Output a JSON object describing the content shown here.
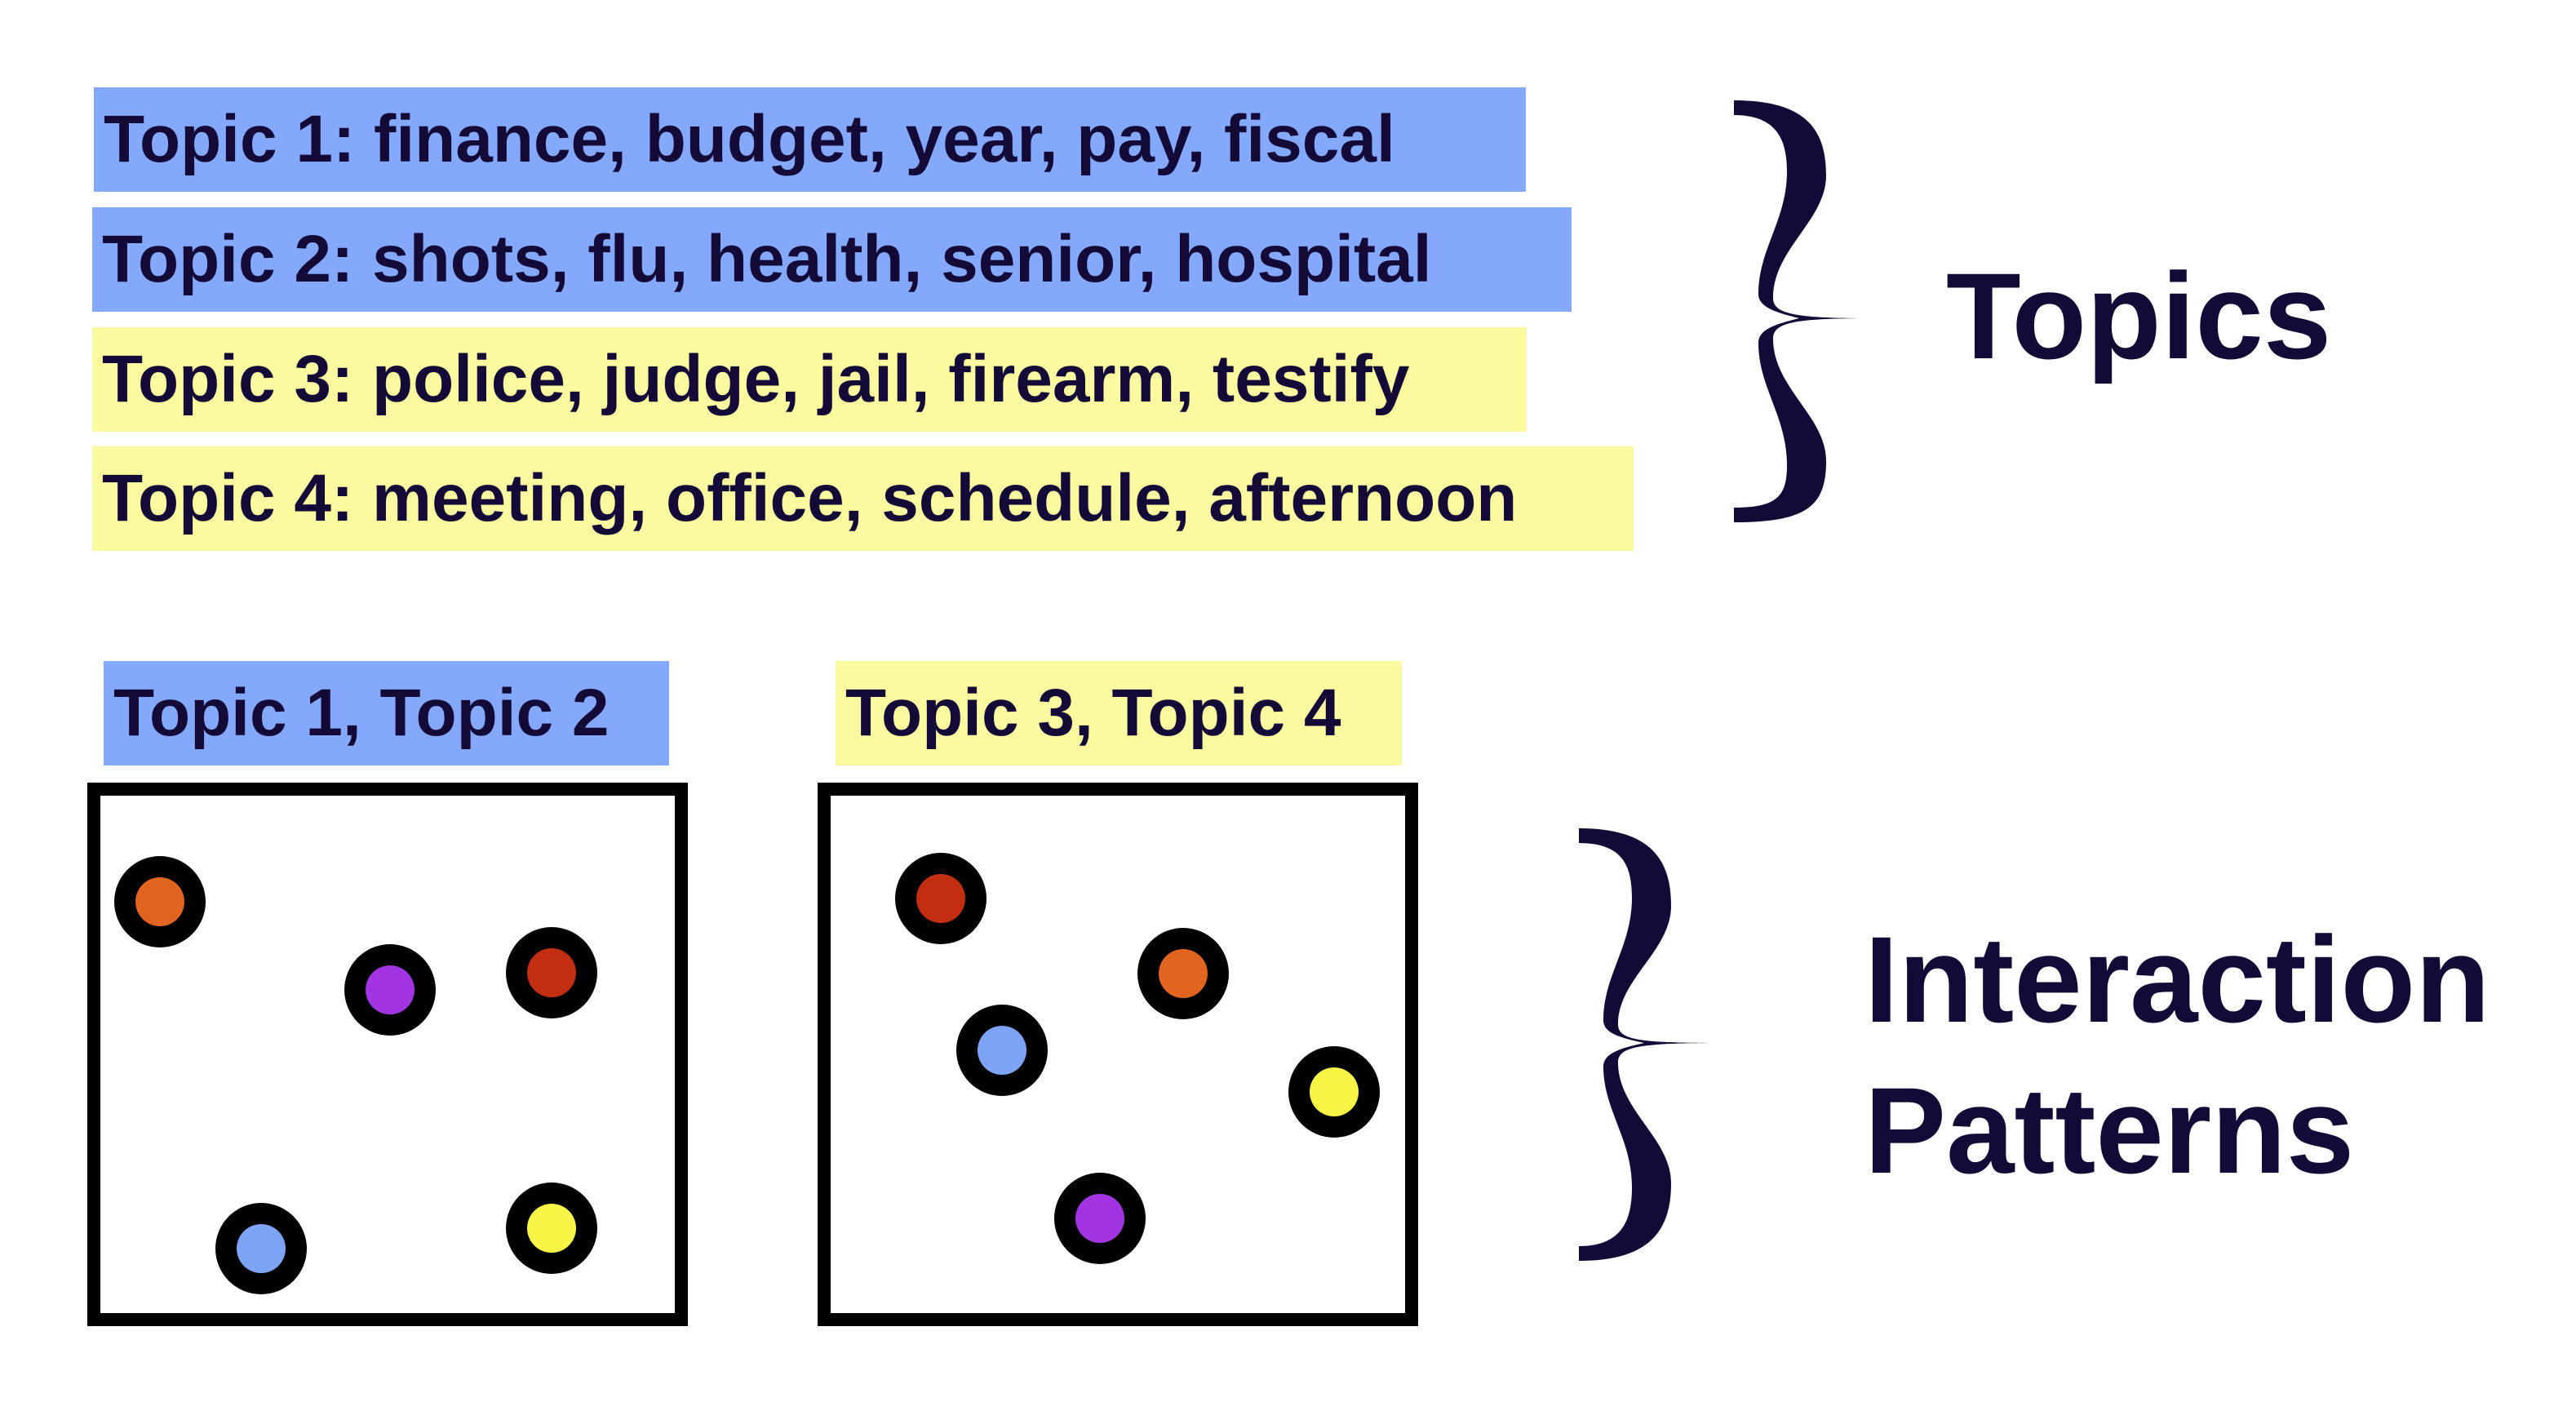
{
  "topics": [
    {
      "label": "Topic 1: finance, budget, year, pay, fiscal",
      "group": 1
    },
    {
      "label": "Topic 2: shots, flu, health, senior, hospital",
      "group": 1
    },
    {
      "label": "Topic 3: police, judge, jail, firearm, testify",
      "group": 2
    },
    {
      "label": "Topic 4: meeting, office, schedule, afternoon",
      "group": 2
    }
  ],
  "groups": [
    {
      "label": "Topic 1, Topic 2",
      "color": "#84a8fb"
    },
    {
      "label": "Topic 3, Topic 4",
      "color": "#fcfaa0"
    }
  ],
  "headings": {
    "topics": "Topics",
    "interaction_line1": "Interaction",
    "interaction_line2": "Patterns"
  },
  "colors": {
    "text": "#140a38",
    "orange": "#e1651e",
    "purple": "#a334e3",
    "red": "#c42e10",
    "blue": "#7da4f7",
    "yellow": "#f8f547"
  }
}
